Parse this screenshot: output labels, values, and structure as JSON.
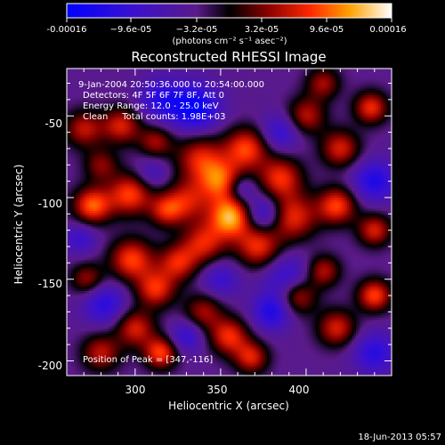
{
  "chart_data": {
    "type": "heatmap",
    "title": "Reconstructed RHESSI Image",
    "xlabel": "Heliocentric X (arcsec)",
    "ylabel": "Heliocentric Y (arcsec)",
    "xlim": [
      260,
      450
    ],
    "ylim": [
      -209,
      -21
    ],
    "x_major_ticks": [
      300,
      350,
      400
    ],
    "y_major_ticks": [
      -50,
      -100,
      -150,
      -200
    ],
    "colorbar": {
      "range": [
        -0.00016,
        0.00016
      ],
      "tick_labels": [
        "-0.00016",
        "−9.6e-05",
        "−3.2e-05",
        "3.2e-05",
        "9.6e-05",
        "0.00016"
      ],
      "units_label": "(photons cm⁻² s⁻¹ asec⁻²)"
    },
    "annotations": [
      "9-Jan-2004 20:50:36.000 to 20:54:00.000",
      "Detectors: 4F 5F 6F 7F 8F, Att 0",
      "Energy Range: 12.0 - 25.0 keV",
      "Clean     Total counts: 1.98E+03"
    ],
    "peak_label": "Position of Peak = [347,-116]",
    "peak_position": [
      347,
      -116
    ],
    "timestamp": "18-Jun-2013 05:57",
    "sources": [
      {
        "x": 356,
        "y": -112,
        "v": 0.00016,
        "s": 9
      },
      {
        "x": 350,
        "y": -90,
        "v": 0.00012,
        "s": 9
      },
      {
        "x": 338,
        "y": -76,
        "v": 0.0001,
        "s": 10
      },
      {
        "x": 365,
        "y": -70,
        "v": 0.00012,
        "s": 9
      },
      {
        "x": 385,
        "y": -88,
        "v": 0.00011,
        "s": 9
      },
      {
        "x": 392,
        "y": -112,
        "v": 0.00011,
        "s": 10
      },
      {
        "x": 372,
        "y": -130,
        "v": 0.00011,
        "s": 9
      },
      {
        "x": 340,
        "y": -128,
        "v": 0.0001,
        "s": 9
      },
      {
        "x": 330,
        "y": -102,
        "v": 9e-05,
        "s": 9
      },
      {
        "x": 275,
        "y": -105,
        "v": 0.00013,
        "s": 8
      },
      {
        "x": 297,
        "y": -98,
        "v": 0.00012,
        "s": 9
      },
      {
        "x": 318,
        "y": -108,
        "v": 9e-05,
        "s": 7
      },
      {
        "x": 270,
        "y": -58,
        "v": 9e-05,
        "s": 8
      },
      {
        "x": 292,
        "y": -56,
        "v": 0.0001,
        "s": 8
      },
      {
        "x": 312,
        "y": -66,
        "v": 8e-05,
        "s": 7
      },
      {
        "x": 280,
        "y": -80,
        "v": 7e-05,
        "s": 7
      },
      {
        "x": 298,
        "y": -138,
        "v": 0.00012,
        "s": 9
      },
      {
        "x": 312,
        "y": -156,
        "v": 0.00011,
        "s": 8
      },
      {
        "x": 325,
        "y": -140,
        "v": 0.0001,
        "s": 8
      },
      {
        "x": 272,
        "y": -150,
        "v": 8e-05,
        "s": 7
      },
      {
        "x": 300,
        "y": -180,
        "v": 0.0001,
        "s": 8
      },
      {
        "x": 315,
        "y": -195,
        "v": 0.00012,
        "s": 7
      },
      {
        "x": 280,
        "y": -195,
        "v": 9e-05,
        "s": 8
      },
      {
        "x": 340,
        "y": -170,
        "v": 8e-05,
        "s": 8
      },
      {
        "x": 355,
        "y": -185,
        "v": 0.00011,
        "s": 8
      },
      {
        "x": 368,
        "y": -198,
        "v": 0.0001,
        "s": 7
      },
      {
        "x": 395,
        "y": -160,
        "v": 0.00011,
        "s": 8
      },
      {
        "x": 418,
        "y": -180,
        "v": 0.0001,
        "s": 8
      },
      {
        "x": 440,
        "y": -160,
        "v": 0.00012,
        "s": 7
      },
      {
        "x": 410,
        "y": -145,
        "v": 9e-05,
        "s": 7
      },
      {
        "x": 418,
        "y": -105,
        "v": 0.00012,
        "s": 8
      },
      {
        "x": 440,
        "y": -120,
        "v": 0.0001,
        "s": 7
      },
      {
        "x": 420,
        "y": -70,
        "v": 0.0001,
        "s": 8
      },
      {
        "x": 438,
        "y": -45,
        "v": 0.00011,
        "s": 7
      },
      {
        "x": 400,
        "y": -50,
        "v": 9e-05,
        "s": 8
      },
      {
        "x": 410,
        "y": -30,
        "v": 8e-05,
        "s": 7
      },
      {
        "x": 335,
        "y": -45,
        "v": -0.00012,
        "s": 10
      },
      {
        "x": 315,
        "y": -40,
        "v": -8e-05,
        "s": 9
      },
      {
        "x": 375,
        "y": -110,
        "v": -9e-05,
        "s": 8
      },
      {
        "x": 362,
        "y": -95,
        "v": -7e-05,
        "s": 6
      },
      {
        "x": 390,
        "y": -150,
        "v": -8e-05,
        "s": 10
      },
      {
        "x": 380,
        "y": -170,
        "v": -9e-05,
        "s": 8
      },
      {
        "x": 282,
        "y": -165,
        "v": -8e-05,
        "s": 9
      },
      {
        "x": 440,
        "y": -90,
        "v": -9e-05,
        "s": 9
      },
      {
        "x": 440,
        "y": -195,
        "v": -8e-05,
        "s": 9
      },
      {
        "x": 330,
        "y": -185,
        "v": -7e-05,
        "s": 7
      },
      {
        "x": 385,
        "y": -60,
        "v": -7e-05,
        "s": 8
      },
      {
        "x": 268,
        "y": -125,
        "v": -6e-05,
        "s": 7
      },
      {
        "x": 310,
        "y": -85,
        "v": -5e-05,
        "s": 7
      },
      {
        "x": 350,
        "y": -150,
        "v": -6e-05,
        "s": 8
      }
    ]
  }
}
